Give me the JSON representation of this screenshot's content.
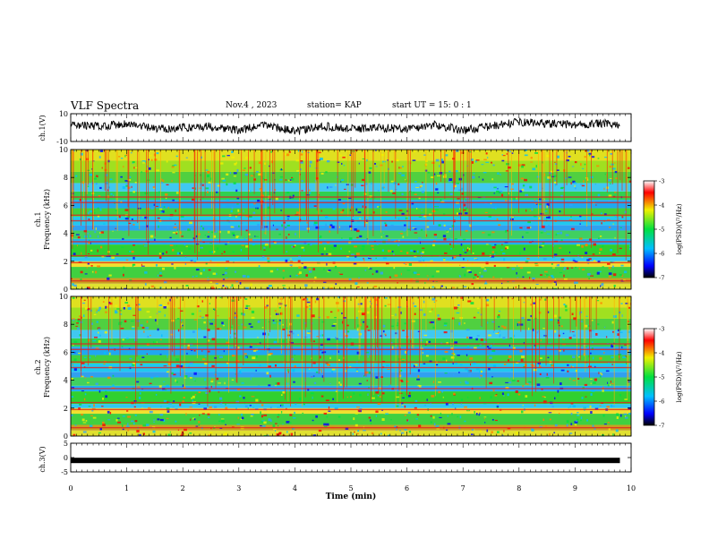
{
  "header": {
    "title": "VLF Spectra",
    "date": "Nov.4 , 2023",
    "station": "station= KAP",
    "start_time": "start UT = 15: 0 : 1"
  },
  "chart_data": [
    {
      "type": "line",
      "name": "ch1-waveform",
      "ylabel": "ch.1(V)",
      "ylim": [
        -10,
        10
      ],
      "yticks": [
        "10",
        "-10"
      ],
      "xlim": [
        0,
        10
      ],
      "x": [
        0,
        0.5,
        1,
        1.5,
        2,
        2.5,
        3,
        3.5,
        4,
        4.5,
        5,
        5.5,
        6,
        6.5,
        7,
        7.5,
        8,
        8.5,
        9,
        9.5,
        9.8
      ],
      "y": [
        2,
        1,
        3,
        -1,
        0,
        1,
        -2,
        2,
        -3,
        1,
        -1,
        0,
        -1,
        2,
        -2,
        1,
        4,
        3,
        2,
        3,
        1
      ]
    },
    {
      "type": "heatmap",
      "name": "ch1-spectrogram",
      "ylabel": "ch.1\nFrequency (kHz)",
      "ylim": [
        0,
        10
      ],
      "yticks": [
        "0",
        "2",
        "4",
        "6",
        "8",
        "10"
      ],
      "xlim": [
        0,
        10
      ],
      "colorbar": {
        "label": "log(PSD)(V²/Hz)",
        "range": [
          -7,
          -3
        ],
        "ticks": [
          "-3",
          "-4",
          "-5",
          "-6",
          "-7"
        ]
      }
    },
    {
      "type": "heatmap",
      "name": "ch2-spectrogram",
      "ylabel": "ch.2\nFrequency (kHz)",
      "ylim": [
        0,
        10
      ],
      "yticks": [
        "0",
        "2",
        "4",
        "6",
        "8",
        "10"
      ],
      "xlim": [
        0,
        10
      ],
      "colorbar": {
        "label": "log(PSD)(V²/Hz)",
        "range": [
          -7,
          -3
        ],
        "ticks": [
          "-3",
          "-4",
          "-5",
          "-6",
          "-7"
        ]
      }
    },
    {
      "type": "line",
      "name": "ch3-waveform",
      "ylabel": "ch.3(V)",
      "ylim": [
        -5,
        5
      ],
      "yticks": [
        "5",
        "0",
        "-5"
      ],
      "xlim": [
        0,
        10
      ],
      "x": [
        0,
        9.8
      ],
      "y": [
        -1,
        -1
      ]
    }
  ],
  "xaxis": {
    "label": "Time (min)",
    "ticks": [
      "0",
      "1",
      "2",
      "3",
      "4",
      "5",
      "6",
      "7",
      "8",
      "9",
      "10"
    ]
  }
}
